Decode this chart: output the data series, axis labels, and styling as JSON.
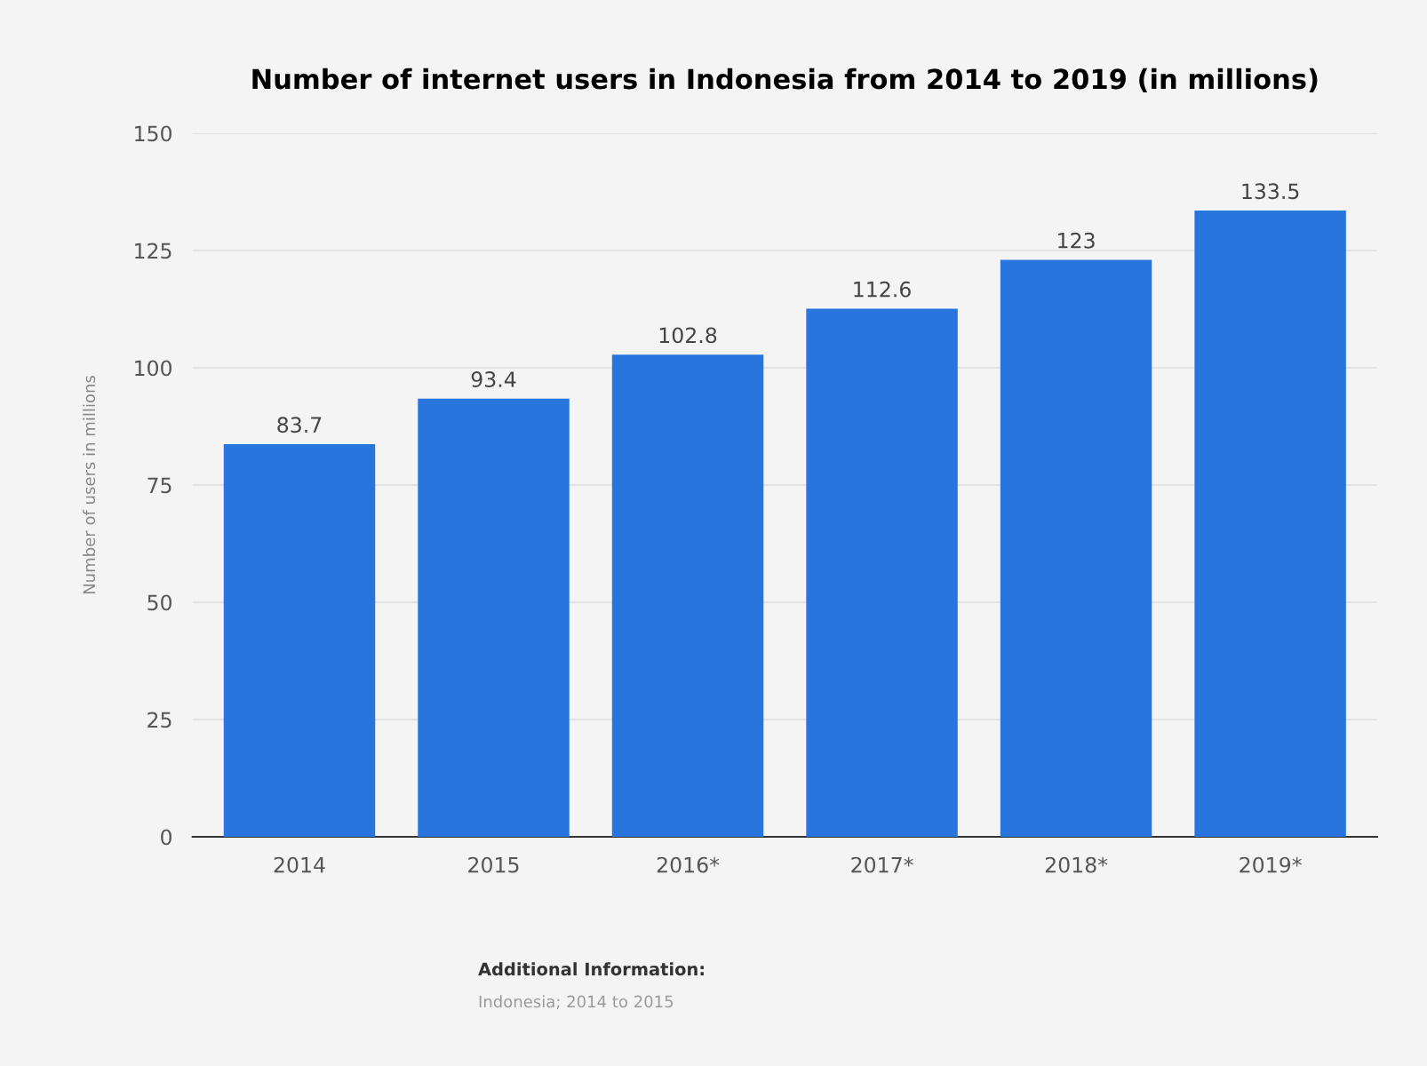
{
  "chart_data": {
    "type": "bar",
    "title": "Number of internet users in Indonesia from 2014 to 2019 (in millions)",
    "ylabel": "Number of users in millions",
    "categories": [
      "2014",
      "2015",
      "2016*",
      "2017*",
      "2018*",
      "2019*"
    ],
    "values": [
      83.7,
      93.4,
      102.8,
      112.6,
      123,
      133.5
    ],
    "color": "#2876dd",
    "ylim": [
      0,
      150
    ],
    "yticks": [
      0,
      25,
      50,
      75,
      100,
      125,
      150
    ],
    "grid": "y",
    "data_labels": true,
    "annotations": [
      "Additional Information:\nIndonesia; 2014 to 2015"
    ]
  }
}
